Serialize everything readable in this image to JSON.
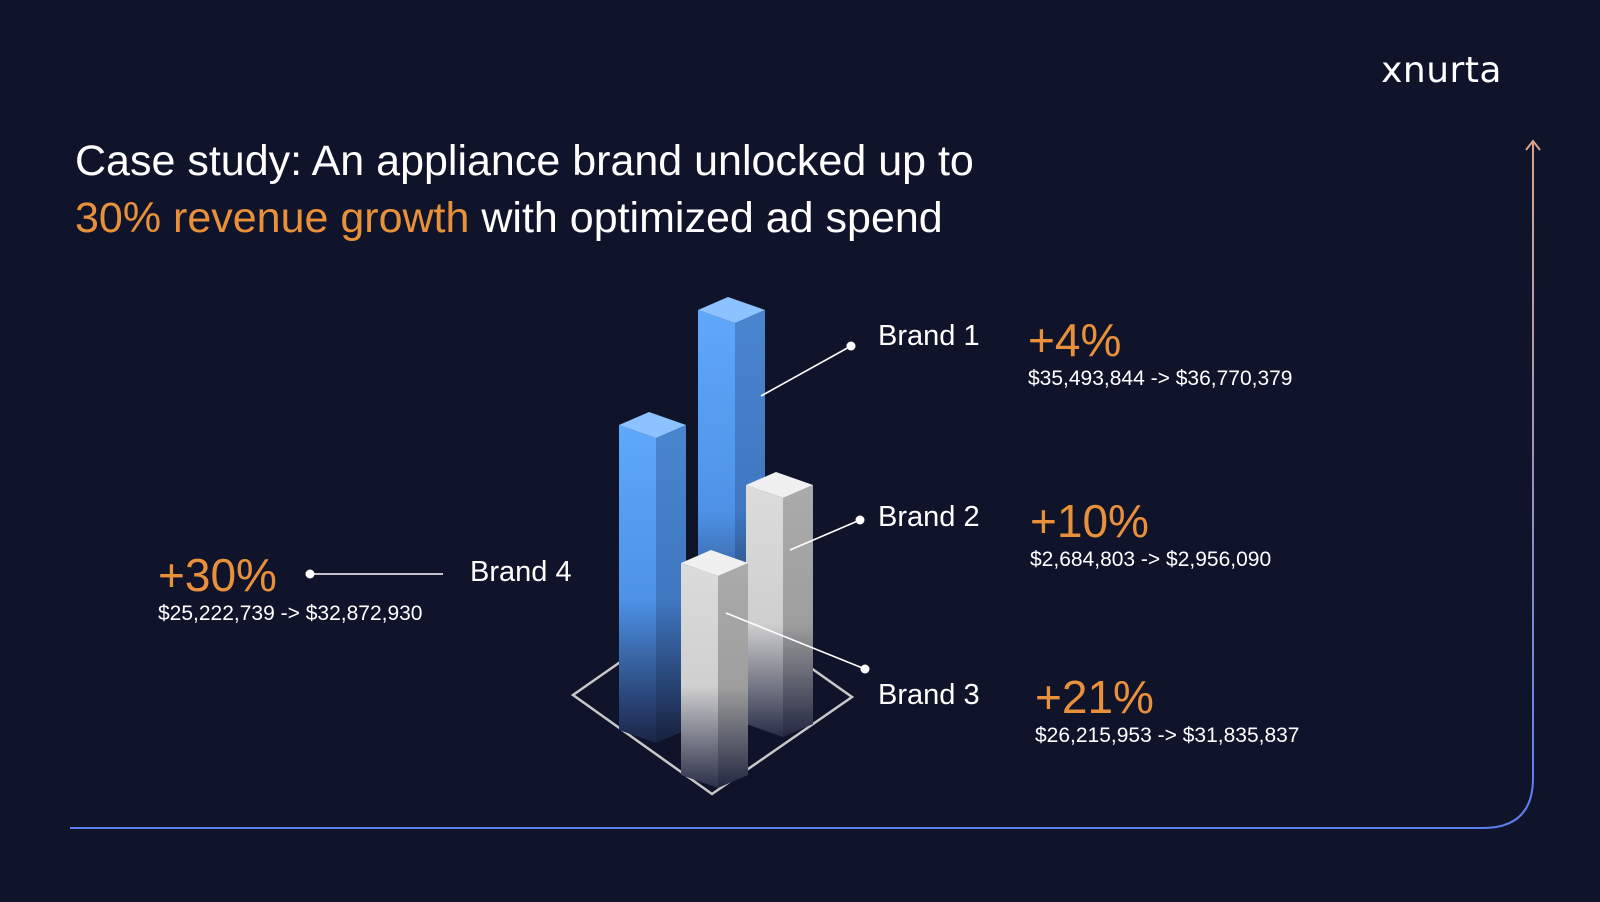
{
  "brand": {
    "logo_text": "xnurta"
  },
  "slide": {
    "title_line1": "Case study: An appliance brand unlocked up to",
    "title_highlight": "30% revenue growth",
    "title_rest": " with optimized ad spend"
  },
  "colors": {
    "background": "#10142b",
    "accent": "#e8903a",
    "bar_blue": "#5aa3f7",
    "bar_gray": "#d8d8d8",
    "frame_line": "#4a6fe0"
  },
  "chart_data": {
    "type": "bar",
    "series": [
      {
        "name": "Brand 1",
        "growth": "+4%",
        "range": "$35,493,844 -> $36,770,379",
        "before": 35493844,
        "after": 36770379,
        "color": "blue"
      },
      {
        "name": "Brand 2",
        "growth": "+10%",
        "range": "$2,684,803 -> $2,956,090",
        "before": 2684803,
        "after": 2956090,
        "color": "gray"
      },
      {
        "name": "Brand 3",
        "growth": "+21%",
        "range": "$26,215,953 -> $31,835,837",
        "before": 26215953,
        "after": 31835837,
        "color": "gray"
      },
      {
        "name": "Brand 4",
        "growth": "+30%",
        "range": "$25,222,739 -> $32,872,930",
        "before": 25222739,
        "after": 32872930,
        "color": "blue"
      }
    ]
  }
}
